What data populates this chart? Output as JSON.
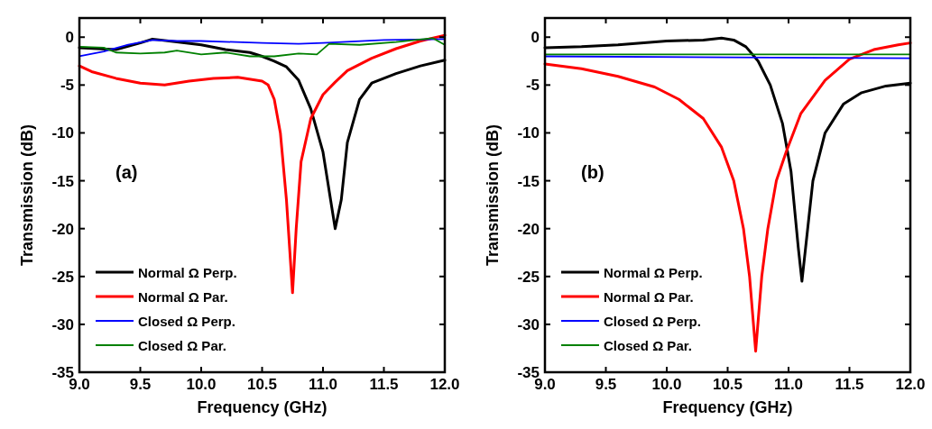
{
  "chart_data": [
    {
      "type": "line",
      "xlabel": "Frequency (GHz)",
      "ylabel": "Transmission (dB)",
      "annotations": [
        "(a)"
      ],
      "xlim": [
        9.0,
        12.0
      ],
      "xticks": [
        {
          "value": 9,
          "label": "9.0"
        },
        9.5,
        {
          "value": 10,
          "label": "10.0"
        },
        10.5,
        {
          "value": 11,
          "label": "11.0"
        },
        11.5,
        {
          "value": 12,
          "label": "12.0"
        }
      ],
      "ylim": [
        -35,
        2
      ],
      "yticks": [
        -35,
        -30,
        -25,
        -20,
        -15,
        -10,
        -5,
        0
      ],
      "grid": false,
      "legend": "bottom left",
      "marker": "none",
      "line_style": "solid",
      "series": [
        {
          "name": "Normal Ω Perp.",
          "color": "#000000",
          "x": [
            9.0,
            9.3,
            9.5,
            9.6,
            9.8,
            10.0,
            10.2,
            10.4,
            10.5,
            10.6,
            10.7,
            10.8,
            10.9,
            11.0,
            11.05,
            11.1,
            11.15,
            11.2,
            11.3,
            11.4,
            11.6,
            11.8,
            12.0
          ],
          "values": [
            -1.1,
            -1.3,
            -0.6,
            -0.2,
            -0.5,
            -0.8,
            -1.3,
            -1.6,
            -2.0,
            -2.5,
            -3.1,
            -4.5,
            -7.5,
            -12,
            -16,
            -20,
            -17,
            -11,
            -6.5,
            -4.8,
            -3.8,
            -3.0,
            -2.4
          ]
        },
        {
          "name": "Normal Ω Par.",
          "color": "#ff0000",
          "x": [
            9.0,
            9.1,
            9.3,
            9.5,
            9.7,
            9.9,
            10.1,
            10.3,
            10.5,
            10.55,
            10.6,
            10.65,
            10.7,
            10.75,
            10.78,
            10.82,
            10.9,
            11.0,
            11.1,
            11.2,
            11.4,
            11.6,
            11.8,
            12.0
          ],
          "values": [
            -3.0,
            -3.6,
            -4.3,
            -4.8,
            -5.0,
            -4.6,
            -4.3,
            -4.2,
            -4.6,
            -5.0,
            -6.5,
            -10,
            -17,
            -26.7,
            -20,
            -13,
            -8.5,
            -6,
            -4.7,
            -3.5,
            -2.2,
            -1.2,
            -0.4,
            0.2
          ]
        },
        {
          "name": "Closed Ω Perp.",
          "color": "#0000ff",
          "x": [
            9.0,
            9.2,
            9.4,
            9.6,
            9.8,
            10.0,
            10.5,
            10.8,
            11.0,
            11.5,
            12.0
          ],
          "values": [
            -2.0,
            -1.5,
            -0.8,
            -0.3,
            -0.4,
            -0.4,
            -0.6,
            -0.7,
            -0.6,
            -0.3,
            -0.2
          ]
        },
        {
          "name": "Closed Ω Par.",
          "color": "#008000",
          "x": [
            9.0,
            9.2,
            9.3,
            9.5,
            9.7,
            9.8,
            10.0,
            10.2,
            10.4,
            10.6,
            10.8,
            10.95,
            11.05,
            11.3,
            11.6,
            11.9,
            12.0
          ],
          "values": [
            -1.0,
            -1.1,
            -1.6,
            -1.7,
            -1.6,
            -1.4,
            -1.8,
            -1.6,
            -2.0,
            -2.0,
            -1.7,
            -1.8,
            -0.7,
            -0.8,
            -0.5,
            -0.1,
            -0.8
          ]
        }
      ]
    },
    {
      "type": "line",
      "xlabel": "Frequency (GHz)",
      "ylabel": "Transmission (dB)",
      "annotations": [
        "(b)"
      ],
      "xlim": [
        9.0,
        12.0
      ],
      "xticks": [
        {
          "value": 9,
          "label": "9.0"
        },
        9.5,
        {
          "value": 10,
          "label": "10.0"
        },
        10.5,
        {
          "value": 11,
          "label": "11.0"
        },
        11.5,
        {
          "value": 12,
          "label": "12.0"
        }
      ],
      "ylim": [
        -35,
        2
      ],
      "yticks": [
        -35,
        -30,
        -25,
        -20,
        -15,
        -10,
        -5,
        0
      ],
      "grid": false,
      "legend": "bottom left",
      "marker": "none",
      "line_style": "solid",
      "series": [
        {
          "name": "Normal Ω Perp.",
          "color": "#000000",
          "x": [
            9.0,
            9.3,
            9.6,
            10.0,
            10.3,
            10.45,
            10.55,
            10.65,
            10.75,
            10.85,
            10.95,
            11.02,
            11.08,
            11.11,
            11.14,
            11.2,
            11.3,
            11.45,
            11.6,
            11.8,
            12.0
          ],
          "values": [
            -1.1,
            -1.0,
            -0.8,
            -0.4,
            -0.3,
            -0.1,
            -0.3,
            -1.0,
            -2.5,
            -5,
            -9,
            -14,
            -22,
            -25.5,
            -22,
            -15,
            -10,
            -7,
            -5.8,
            -5.1,
            -4.8
          ]
        },
        {
          "name": "Normal Ω Par.",
          "color": "#ff0000",
          "x": [
            9.0,
            9.3,
            9.6,
            9.9,
            10.1,
            10.3,
            10.45,
            10.55,
            10.63,
            10.68,
            10.73,
            10.78,
            10.83,
            10.9,
            10.98,
            11.1,
            11.3,
            11.5,
            11.7,
            11.9,
            12.0
          ],
          "values": [
            -2.8,
            -3.3,
            -4.1,
            -5.2,
            -6.5,
            -8.5,
            -11.5,
            -15,
            -20,
            -25,
            -32.8,
            -25,
            -20,
            -15,
            -12,
            -8,
            -4.5,
            -2.3,
            -1.3,
            -0.8,
            -0.6
          ]
        },
        {
          "name": "Closed Ω Perp.",
          "color": "#0000ff",
          "x": [
            9.0,
            10.5,
            12.0
          ],
          "values": [
            -2.0,
            -2.1,
            -2.2
          ]
        },
        {
          "name": "Closed Ω Par.",
          "color": "#008000",
          "x": [
            9.0,
            10.5,
            12.0
          ],
          "values": [
            -1.8,
            -1.8,
            -1.8
          ]
        }
      ]
    }
  ]
}
